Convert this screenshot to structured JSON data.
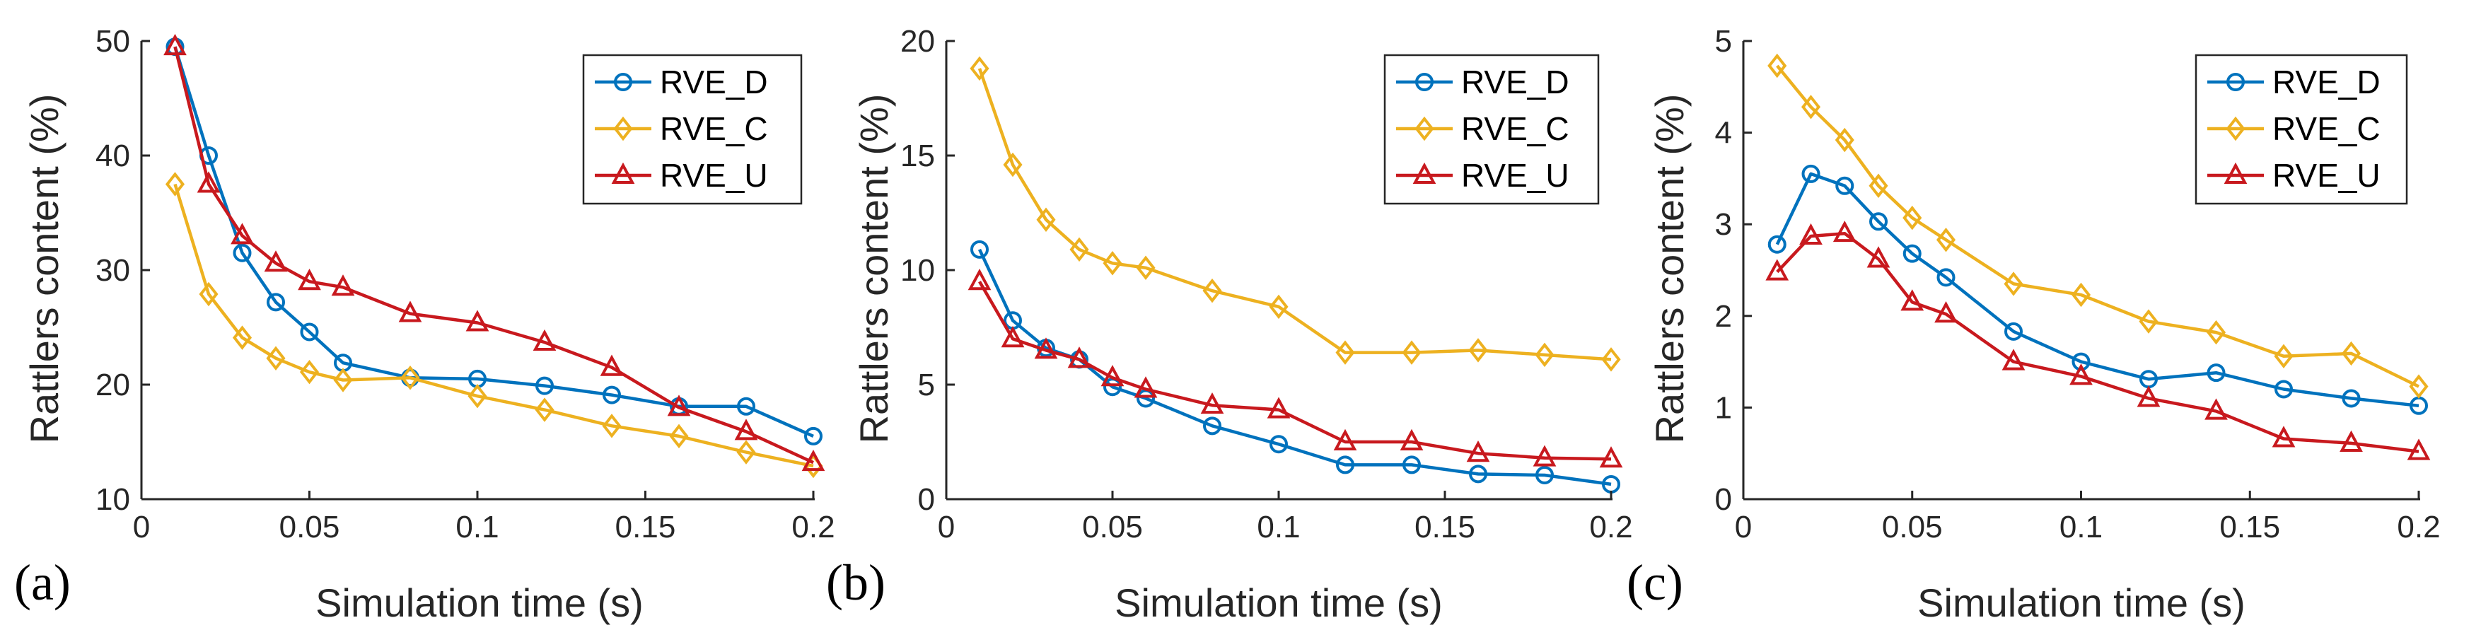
{
  "chart_data": [
    {
      "type": "line",
      "panel_label": "(a)",
      "xlabel": "Simulation time (s)",
      "ylabel": "Rattlers content (%)",
      "xlim": [
        0,
        0.2
      ],
      "ylim": [
        10,
        50
      ],
      "xticks": [
        0,
        0.05,
        0.1,
        0.15,
        0.2
      ],
      "xtick_labels": [
        "0",
        "0.05",
        "0.1",
        "0.15",
        "0.2"
      ],
      "yticks": [
        10,
        20,
        30,
        40,
        50
      ],
      "ytick_labels": [
        "10",
        "20",
        "30",
        "40",
        "50"
      ],
      "legend_position": "top-right",
      "series": [
        {
          "name": "RVE_D",
          "color": "#0072BD",
          "marker": "circle",
          "x": [
            0.01,
            0.02,
            0.03,
            0.04,
            0.05,
            0.06,
            0.08,
            0.1,
            0.12,
            0.14,
            0.16,
            0.18,
            0.2
          ],
          "values": [
            49.5,
            40,
            31.5,
            27.2,
            24.6,
            21.9,
            20.6,
            20.5,
            19.9,
            19.1,
            18.1,
            18.1,
            15.5
          ]
        },
        {
          "name": "RVE_C",
          "color": "#EDB120",
          "marker": "diamond",
          "x": [
            0.01,
            0.02,
            0.03,
            0.04,
            0.05,
            0.06,
            0.08,
            0.1,
            0.12,
            0.14,
            0.16,
            0.18,
            0.2
          ],
          "values": [
            37.5,
            27.9,
            24.1,
            22.3,
            21.1,
            20.4,
            20.6,
            19,
            17.8,
            16.4,
            15.5,
            14.1,
            12.9
          ]
        },
        {
          "name": "RVE_U",
          "color": "#C8191E",
          "marker": "triangle",
          "x": [
            0.01,
            0.02,
            0.03,
            0.04,
            0.05,
            0.06,
            0.08,
            0.1,
            0.12,
            0.14,
            0.16,
            0.18,
            0.2
          ],
          "values": [
            49.5,
            37.5,
            33,
            30.6,
            29,
            28.5,
            26.2,
            25.4,
            23.7,
            21.5,
            18,
            15.9,
            13.2
          ]
        }
      ]
    },
    {
      "type": "line",
      "panel_label": "(b)",
      "xlabel": "Simulation time (s)",
      "ylabel": "Rattlers content (%)",
      "xlim": [
        0,
        0.2
      ],
      "ylim": [
        0,
        20
      ],
      "xticks": [
        0,
        0.05,
        0.1,
        0.15,
        0.2
      ],
      "xtick_labels": [
        "0",
        "0.05",
        "0.1",
        "0.15",
        "0.2"
      ],
      "yticks": [
        0,
        5,
        10,
        15,
        20
      ],
      "ytick_labels": [
        "0",
        "5",
        "10",
        "15",
        "20"
      ],
      "legend_position": "top-right",
      "series": [
        {
          "name": "RVE_D",
          "color": "#0072BD",
          "marker": "circle",
          "x": [
            0.01,
            0.02,
            0.03,
            0.04,
            0.05,
            0.06,
            0.08,
            0.1,
            0.12,
            0.14,
            0.16,
            0.18,
            0.2
          ],
          "values": [
            10.9,
            7.8,
            6.6,
            6.1,
            4.9,
            4.4,
            3.2,
            2.4,
            1.5,
            1.5,
            1.1,
            1.05,
            0.65
          ]
        },
        {
          "name": "RVE_C",
          "color": "#EDB120",
          "marker": "diamond",
          "x": [
            0.01,
            0.02,
            0.03,
            0.04,
            0.05,
            0.06,
            0.08,
            0.1,
            0.12,
            0.14,
            0.16,
            0.18,
            0.2
          ],
          "values": [
            18.8,
            14.6,
            12.2,
            10.9,
            10.3,
            10.1,
            9.1,
            8.4,
            6.4,
            6.4,
            6.5,
            6.3,
            6.1
          ]
        },
        {
          "name": "RVE_U",
          "color": "#C8191E",
          "marker": "triangle",
          "x": [
            0.01,
            0.02,
            0.03,
            0.04,
            0.05,
            0.06,
            0.08,
            0.1,
            0.12,
            0.14,
            0.16,
            0.18,
            0.2
          ],
          "values": [
            9.5,
            7,
            6.5,
            6.1,
            5.3,
            4.8,
            4.1,
            3.9,
            2.5,
            2.5,
            2,
            1.8,
            1.75
          ]
        }
      ]
    },
    {
      "type": "line",
      "panel_label": "(c)",
      "xlabel": "Simulation time (s)",
      "ylabel": "Rattlers content (%)",
      "xlim": [
        0,
        0.2
      ],
      "ylim": [
        0,
        5
      ],
      "xticks": [
        0,
        0.05,
        0.1,
        0.15,
        0.2
      ],
      "xtick_labels": [
        "0",
        "0.05",
        "0.1",
        "0.15",
        "0.2"
      ],
      "yticks": [
        0,
        1,
        2,
        3,
        4,
        5
      ],
      "ytick_labels": [
        "0",
        "1",
        "2",
        "3",
        "4",
        "5"
      ],
      "legend_position": "top-right",
      "series": [
        {
          "name": "RVE_D",
          "color": "#0072BD",
          "marker": "circle",
          "x": [
            0.01,
            0.02,
            0.03,
            0.04,
            0.05,
            0.06,
            0.08,
            0.1,
            0.12,
            0.14,
            0.16,
            0.18,
            0.2
          ],
          "values": [
            2.78,
            3.55,
            3.42,
            3.03,
            2.68,
            2.42,
            1.83,
            1.5,
            1.31,
            1.38,
            1.2,
            1.1,
            1.02
          ]
        },
        {
          "name": "RVE_C",
          "color": "#EDB120",
          "marker": "diamond",
          "x": [
            0.01,
            0.02,
            0.03,
            0.04,
            0.05,
            0.06,
            0.08,
            0.1,
            0.12,
            0.14,
            0.16,
            0.18,
            0.2
          ],
          "values": [
            4.73,
            4.28,
            3.92,
            3.42,
            3.07,
            2.83,
            2.35,
            2.23,
            1.94,
            1.82,
            1.56,
            1.59,
            1.23
          ]
        },
        {
          "name": "RVE_U",
          "color": "#C8191E",
          "marker": "triangle",
          "x": [
            0.01,
            0.02,
            0.03,
            0.04,
            0.05,
            0.06,
            0.08,
            0.1,
            0.12,
            0.14,
            0.16,
            0.18,
            0.2
          ],
          "values": [
            2.48,
            2.87,
            2.9,
            2.62,
            2.15,
            2.02,
            1.5,
            1.34,
            1.1,
            0.96,
            0.66,
            0.61,
            0.52
          ]
        }
      ]
    }
  ]
}
